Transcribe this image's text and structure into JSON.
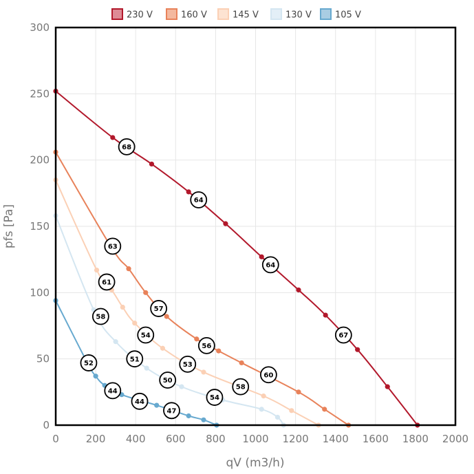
{
  "chart_data": {
    "type": "line",
    "xlabel": "qV (m3/h)",
    "ylabel": "pfs [Pa]",
    "xlim": [
      0,
      2000
    ],
    "ylim": [
      0,
      300
    ],
    "xticks": [
      0,
      200,
      400,
      600,
      800,
      1000,
      1200,
      1400,
      1600,
      1800,
      2000
    ],
    "yticks": [
      0,
      50,
      100,
      150,
      200,
      250,
      300
    ],
    "grid": true,
    "legend_position": "top",
    "series": [
      {
        "name": "230 V",
        "color": "#b2182b",
        "fill": "#de8b96",
        "points": [
          [
            0,
            252
          ],
          [
            285,
            217
          ],
          [
            480,
            197
          ],
          [
            665,
            176
          ],
          [
            850,
            152
          ],
          [
            1030,
            127
          ],
          [
            1215,
            102
          ],
          [
            1350,
            83
          ],
          [
            1510,
            57
          ],
          [
            1660,
            29
          ],
          [
            1810,
            0
          ]
        ]
      },
      {
        "name": "160 V",
        "color": "#e8825a",
        "fill": "#f4b89e",
        "points": [
          [
            0,
            206
          ],
          [
            275,
            135
          ],
          [
            365,
            118
          ],
          [
            450,
            100
          ],
          [
            555,
            82
          ],
          [
            705,
            65
          ],
          [
            815,
            56
          ],
          [
            930,
            47
          ],
          [
            1215,
            25
          ],
          [
            1345,
            12
          ],
          [
            1465,
            0
          ]
        ]
      },
      {
        "name": "145 V",
        "color": "#fbd0b5",
        "fill": "#fde3d2",
        "points": [
          [
            0,
            185
          ],
          [
            205,
            117
          ],
          [
            280,
            102
          ],
          [
            335,
            89
          ],
          [
            395,
            77
          ],
          [
            535,
            58
          ],
          [
            740,
            40
          ],
          [
            1040,
            22
          ],
          [
            1180,
            11
          ],
          [
            1315,
            0
          ]
        ]
      },
      {
        "name": "130 V",
        "color": "#d4e6f1",
        "fill": "#e3eff7",
        "points": [
          [
            0,
            158
          ],
          [
            190,
            87
          ],
          [
            300,
            63
          ],
          [
            455,
            43
          ],
          [
            630,
            29
          ],
          [
            835,
            19
          ],
          [
            1030,
            12
          ],
          [
            1110,
            6
          ],
          [
            1140,
            0
          ]
        ]
      },
      {
        "name": "105 V",
        "color": "#67a9cf",
        "fill": "#a9cde3",
        "points": [
          [
            0,
            94
          ],
          [
            155,
            48
          ],
          [
            200,
            37
          ],
          [
            245,
            30
          ],
          [
            330,
            23
          ],
          [
            505,
            15
          ],
          [
            665,
            7
          ],
          [
            740,
            4
          ],
          [
            805,
            0
          ]
        ]
      }
    ],
    "annotations": [
      {
        "label": "68",
        "x": 355,
        "y": 210
      },
      {
        "label": "64",
        "x": 715,
        "y": 170
      },
      {
        "label": "64",
        "x": 1075,
        "y": 121
      },
      {
        "label": "67",
        "x": 1440,
        "y": 68
      },
      {
        "label": "63",
        "x": 285,
        "y": 135
      },
      {
        "label": "57",
        "x": 515,
        "y": 88
      },
      {
        "label": "56",
        "x": 755,
        "y": 60
      },
      {
        "label": "60",
        "x": 1065,
        "y": 38
      },
      {
        "label": "61",
        "x": 255,
        "y": 108
      },
      {
        "label": "54",
        "x": 450,
        "y": 68
      },
      {
        "label": "53",
        "x": 660,
        "y": 46
      },
      {
        "label": "58",
        "x": 925,
        "y": 29
      },
      {
        "label": "58",
        "x": 225,
        "y": 82
      },
      {
        "label": "51",
        "x": 395,
        "y": 50
      },
      {
        "label": "50",
        "x": 560,
        "y": 34
      },
      {
        "label": "54",
        "x": 795,
        "y": 21
      },
      {
        "label": "52",
        "x": 165,
        "y": 47
      },
      {
        "label": "44",
        "x": 285,
        "y": 26
      },
      {
        "label": "44",
        "x": 420,
        "y": 18
      },
      {
        "label": "47",
        "x": 580,
        "y": 11
      }
    ]
  }
}
